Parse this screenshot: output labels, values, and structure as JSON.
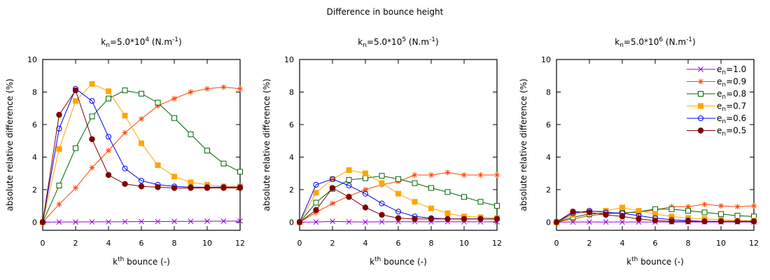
{
  "chart_data": {
    "type": "line",
    "title": "Difference in bounce height",
    "panels": [
      {
        "title_prefix": "k",
        "title_sub": "n",
        "title_mid": "=5.0*10",
        "title_sup": "4",
        "title_unit": " (N.m",
        "title_unit_sup": "-1",
        "title_end": ")",
        "xlabel_base": "k",
        "xlabel_sup": "th",
        "xlabel_rest": " bounce (-)",
        "ylabel": "absolute relative difference (%)",
        "xlim": [
          0,
          12
        ],
        "ylim": [
          -0.5,
          10
        ],
        "xticks": [
          0,
          2,
          4,
          6,
          8,
          10,
          12
        ],
        "yticks": [
          0,
          2,
          4,
          6,
          8,
          10
        ],
        "x": [
          0,
          1,
          2,
          3,
          4,
          5,
          6,
          7,
          8,
          9,
          10,
          11,
          12
        ],
        "series": [
          {
            "name": "e_n=1.0",
            "values": [
              0,
              0.01,
              0.01,
              0.02,
              0.02,
              0.03,
              0.04,
              0.04,
              0.05,
              0.05,
              0.06,
              0.06,
              0.07
            ]
          },
          {
            "name": "e_n=0.9",
            "values": [
              0,
              1.1,
              2.1,
              3.35,
              4.4,
              5.5,
              6.35,
              7.15,
              7.6,
              8.0,
              8.2,
              8.3,
              8.2
            ]
          },
          {
            "name": "e_n=0.8",
            "values": [
              0,
              2.25,
              4.55,
              6.5,
              7.6,
              8.1,
              7.9,
              7.35,
              6.4,
              5.4,
              4.4,
              3.6,
              3.1
            ]
          },
          {
            "name": "e_n=0.7",
            "values": [
              0,
              4.5,
              7.45,
              8.5,
              8.05,
              6.55,
              4.85,
              3.5,
              2.8,
              2.45,
              2.3,
              2.2,
              2.2
            ]
          },
          {
            "name": "e_n=0.6",
            "values": [
              0,
              5.75,
              8.2,
              7.45,
              5.25,
              3.3,
              2.55,
              2.3,
              2.2,
              2.15,
              2.15,
              2.15,
              2.15
            ]
          },
          {
            "name": "e_n=0.5",
            "values": [
              0,
              6.6,
              8.1,
              5.1,
              2.9,
              2.35,
              2.2,
              2.15,
              2.1,
              2.1,
              2.1,
              2.1,
              2.1
            ]
          }
        ]
      },
      {
        "title_prefix": "k",
        "title_sub": "n",
        "title_mid": "=5.0*10",
        "title_sup": "5",
        "title_unit": " (N.m",
        "title_unit_sup": "-1",
        "title_end": ")",
        "xlabel_base": "k",
        "xlabel_sup": "th",
        "xlabel_rest": " bounce (-)",
        "ylabel": "absolute relative difference (%)",
        "xlim": [
          0,
          12
        ],
        "ylim": [
          -0.5,
          10
        ],
        "xticks": [
          0,
          2,
          4,
          6,
          8,
          10,
          12
        ],
        "yticks": [
          0,
          2,
          4,
          6,
          8,
          10
        ],
        "x": [
          0,
          1,
          2,
          3,
          4,
          5,
          6,
          7,
          8,
          9,
          10,
          11,
          12
        ],
        "series": [
          {
            "name": "e_n=1.0",
            "values": [
              0,
              0.01,
              0.05,
              0.02,
              0.01,
              0.02,
              0.03,
              0.03,
              0.02,
              0.03,
              0.02,
              0.02,
              0.02
            ]
          },
          {
            "name": "e_n=0.9",
            "values": [
              0,
              0.6,
              1.15,
              1.6,
              2.0,
              2.3,
              2.5,
              2.9,
              2.9,
              3.05,
              2.9,
              2.9,
              2.9
            ]
          },
          {
            "name": "e_n=0.8",
            "values": [
              0,
              1.2,
              2.05,
              2.6,
              2.7,
              2.85,
              2.65,
              2.4,
              2.1,
              1.85,
              1.55,
              1.25,
              1.0
            ]
          },
          {
            "name": "e_n=0.7",
            "values": [
              0,
              1.8,
              2.65,
              3.2,
              3.0,
              2.4,
              1.75,
              1.25,
              0.85,
              0.55,
              0.35,
              0.3,
              0.25
            ]
          },
          {
            "name": "e_n=0.6",
            "values": [
              0,
              2.3,
              2.65,
              2.25,
              1.75,
              1.15,
              0.65,
              0.35,
              0.25,
              0.2,
              0.2,
              0.2,
              0.2
            ]
          },
          {
            "name": "e_n=0.5",
            "values": [
              0,
              0.75,
              2.1,
              1.55,
              0.9,
              0.45,
              0.25,
              0.2,
              0.2,
              0.2,
              0.2,
              0.2,
              0.2
            ]
          }
        ]
      },
      {
        "title_prefix": "k",
        "title_sub": "n",
        "title_mid": "=5.0*10",
        "title_sup": "6",
        "title_unit": " (N.m",
        "title_unit_sup": "-1",
        "title_end": ")",
        "xlabel_base": "k",
        "xlabel_sup": "th",
        "xlabel_rest": " bounce (-)",
        "ylabel": "absolute relative difference (%)",
        "xlim": [
          0,
          12
        ],
        "ylim": [
          -0.5,
          10
        ],
        "xticks": [
          0,
          2,
          4,
          6,
          8,
          10,
          12
        ],
        "yticks": [
          0,
          2,
          4,
          6,
          8,
          10
        ],
        "x": [
          0,
          1,
          2,
          3,
          4,
          5,
          6,
          7,
          8,
          9,
          10,
          11,
          12
        ],
        "legend": "top-right",
        "series": [
          {
            "name": "e_n=1.0",
            "values": [
              0,
              0.01,
              0.01,
              0.01,
              0.01,
              0.01,
              0.01,
              0.01,
              0.01,
              0.01,
              0.01,
              0.01,
              0.01
            ]
          },
          {
            "name": "e_n=0.9",
            "values": [
              0,
              0.2,
              0.4,
              0.5,
              0.6,
              0.6,
              0.75,
              0.95,
              0.95,
              1.1,
              1.0,
              0.95,
              1.0
            ]
          },
          {
            "name": "e_n=0.8",
            "values": [
              0,
              0.3,
              0.5,
              0.55,
              0.55,
              0.65,
              0.8,
              0.8,
              0.7,
              0.6,
              0.5,
              0.4,
              0.35
            ]
          },
          {
            "name": "e_n=0.7",
            "values": [
              0,
              0.45,
              0.65,
              0.7,
              0.9,
              0.7,
              0.5,
              0.35,
              0.25,
              0.2,
              0.15,
              0.1,
              0.1
            ]
          },
          {
            "name": "e_n=0.6",
            "values": [
              0,
              0.55,
              0.7,
              0.6,
              0.55,
              0.4,
              0.25,
              0.15,
              0.1,
              0.05,
              0.05,
              0.05,
              0.05
            ]
          },
          {
            "name": "e_n=0.5",
            "values": [
              0,
              0.65,
              0.6,
              0.45,
              0.35,
              0.2,
              0.1,
              0.05,
              0.05,
              0.05,
              0.05,
              0.05,
              0.05
            ]
          }
        ]
      }
    ],
    "legend_entries": [
      {
        "base": "e",
        "sub": "n",
        "rest": "=1.0",
        "color": "#9400d3",
        "marker": "x"
      },
      {
        "base": "e",
        "sub": "n",
        "rest": "=0.9",
        "color": "#ff4500",
        "marker": "star"
      },
      {
        "base": "e",
        "sub": "n",
        "rest": "=0.8",
        "color": "#006400",
        "marker": "open-square"
      },
      {
        "base": "e",
        "sub": "n",
        "rest": "=0.7",
        "color": "#ffa500",
        "marker": "filled-square"
      },
      {
        "base": "e",
        "sub": "n",
        "rest": "=0.6",
        "color": "#0000ff",
        "marker": "open-circle"
      },
      {
        "base": "e",
        "sub": "n",
        "rest": "=0.5",
        "color": "#800000",
        "marker": "filled-circle"
      }
    ],
    "grid": false
  }
}
